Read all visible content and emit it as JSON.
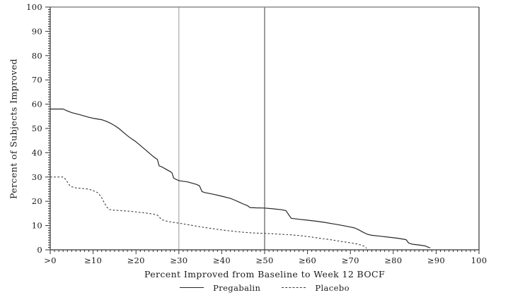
{
  "chart_data": {
    "type": "line",
    "title": "",
    "xlabel": "Percent Improved from Baseline to Week 12 BOCF",
    "ylabel": "Percent of Subjects Improved",
    "xlim": [
      0,
      100
    ],
    "ylim": [
      0,
      100
    ],
    "x_major_tick_labels": [
      ">0",
      "≥10",
      "≥20",
      "≥30",
      "≥40",
      "≥50",
      "≥60",
      "≥70",
      "≥80",
      "≥90",
      "100"
    ],
    "y_major_tick_labels": [
      "0",
      "10",
      "20",
      "30",
      "40",
      "50",
      "60",
      "70",
      "80",
      "90",
      "100"
    ],
    "x_minor_tick_step": 1,
    "y_minor_tick_step": 1,
    "grid": "off",
    "legend_position": "bottom-center",
    "frame": true,
    "axis_color": "#333333",
    "frame_top_color": "#8c8c8c",
    "reference_lines": [
      {
        "x": 30,
        "color": "#a9a9a9"
      },
      {
        "x": 50,
        "color": "#5c5c5c"
      }
    ],
    "series": [
      {
        "name": "Pregabalin",
        "line_style": "solid",
        "color": "#262626",
        "points": [
          [
            0,
            58
          ],
          [
            3,
            58
          ],
          [
            4,
            57.2
          ],
          [
            5,
            56.5
          ],
          [
            7,
            55.6
          ],
          [
            9,
            54.6
          ],
          [
            10,
            54.2
          ],
          [
            12,
            53.6
          ],
          [
            13,
            53
          ],
          [
            14,
            52.2
          ],
          [
            15,
            51.2
          ],
          [
            16,
            50
          ],
          [
            17,
            48.5
          ],
          [
            18,
            47
          ],
          [
            19,
            45.7
          ],
          [
            20,
            44.5
          ],
          [
            21,
            43
          ],
          [
            22,
            41.5
          ],
          [
            23,
            40
          ],
          [
            24,
            38.5
          ],
          [
            25,
            37.2
          ],
          [
            25.4,
            34.6
          ],
          [
            26,
            34.2
          ],
          [
            27,
            33.2
          ],
          [
            28,
            32.2
          ],
          [
            28.4,
            31.7
          ],
          [
            28.8,
            29.5
          ],
          [
            30,
            28.5
          ],
          [
            32,
            28
          ],
          [
            34,
            27
          ],
          [
            34.8,
            26.4
          ],
          [
            35.4,
            24
          ],
          [
            36,
            23.6
          ],
          [
            38,
            22.9
          ],
          [
            40,
            22.1
          ],
          [
            42,
            21.2
          ],
          [
            43,
            20.5
          ],
          [
            44,
            19.7
          ],
          [
            45,
            18.9
          ],
          [
            46,
            18.2
          ],
          [
            46.6,
            17.4
          ],
          [
            48,
            17.3
          ],
          [
            50,
            17.2
          ],
          [
            52,
            16.9
          ],
          [
            54,
            16.5
          ],
          [
            55,
            16.1
          ],
          [
            55.6,
            14.5
          ],
          [
            56.2,
            13
          ],
          [
            58,
            12.6
          ],
          [
            60,
            12.2
          ],
          [
            62,
            11.8
          ],
          [
            64,
            11.3
          ],
          [
            66,
            10.7
          ],
          [
            68,
            10.1
          ],
          [
            70,
            9.4
          ],
          [
            71,
            9
          ],
          [
            72,
            8.2
          ],
          [
            73,
            7.2
          ],
          [
            74,
            6.4
          ],
          [
            75,
            6
          ],
          [
            77,
            5.6
          ],
          [
            79,
            5.2
          ],
          [
            81,
            4.8
          ],
          [
            83,
            4.2
          ],
          [
            83.6,
            2.8
          ],
          [
            84.5,
            2.3
          ],
          [
            86,
            2
          ],
          [
            87.5,
            1.6
          ],
          [
            88,
            1.2
          ],
          [
            88.6,
            0.8
          ]
        ]
      },
      {
        "name": "Placebo",
        "line_style": "dashed",
        "color": "#3c3c3c",
        "points": [
          [
            0,
            30
          ],
          [
            3,
            30
          ],
          [
            3.6,
            29
          ],
          [
            4.5,
            26.6
          ],
          [
            5,
            26
          ],
          [
            6,
            25.5
          ],
          [
            8,
            25.2
          ],
          [
            9,
            25
          ],
          [
            10,
            24.4
          ],
          [
            11,
            23.6
          ],
          [
            11.6,
            22.4
          ],
          [
            12,
            21.5
          ],
          [
            12.6,
            19.4
          ],
          [
            13.2,
            17.6
          ],
          [
            13.8,
            16.6
          ],
          [
            15,
            16.3
          ],
          [
            17,
            16.1
          ],
          [
            19,
            15.8
          ],
          [
            21,
            15.4
          ],
          [
            23,
            15
          ],
          [
            24,
            14.7
          ],
          [
            25,
            14.3
          ],
          [
            25.6,
            13.2
          ],
          [
            26.2,
            12.3
          ],
          [
            27,
            11.9
          ],
          [
            28,
            11.5
          ],
          [
            30,
            11
          ],
          [
            32,
            10.4
          ],
          [
            34,
            9.8
          ],
          [
            36,
            9.2
          ],
          [
            38,
            8.7
          ],
          [
            40,
            8.2
          ],
          [
            42,
            7.8
          ],
          [
            44,
            7.4
          ],
          [
            46,
            7.1
          ],
          [
            48,
            6.9
          ],
          [
            50,
            6.8
          ],
          [
            52,
            6.6
          ],
          [
            54,
            6.4
          ],
          [
            56,
            6.2
          ],
          [
            58,
            5.9
          ],
          [
            60,
            5.5
          ],
          [
            62,
            5
          ],
          [
            64,
            4.5
          ],
          [
            66,
            4
          ],
          [
            68,
            3.4
          ],
          [
            70,
            2.9
          ],
          [
            71.5,
            2.4
          ],
          [
            72.5,
            2
          ],
          [
            73.3,
            1.4
          ],
          [
            73.8,
            0.6
          ]
        ]
      }
    ]
  }
}
